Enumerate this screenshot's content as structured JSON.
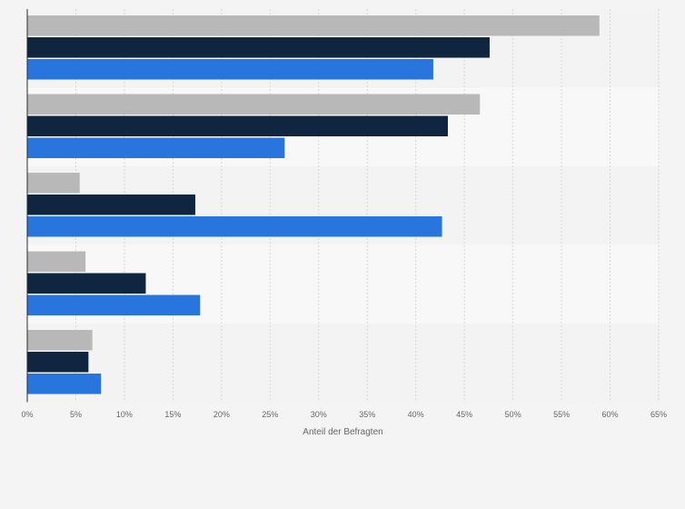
{
  "chart_data": {
    "type": "bar",
    "orientation": "horizontal",
    "categories": [
      "",
      "",
      "",
      "",
      ""
    ],
    "series": [
      {
        "values": [
          58.9,
          46.6,
          5.4,
          6.0,
          6.7
        ],
        "color": "#b8b8b8"
      },
      {
        "values": [
          47.6,
          43.3,
          17.3,
          12.2,
          6.3
        ],
        "color": "#10253f"
      },
      {
        "values": [
          41.8,
          26.5,
          42.7,
          17.8,
          7.6
        ],
        "color": "#2876dd"
      }
    ],
    "xlabel": "Anteil der Befragten",
    "ylabel": "",
    "xlim": [
      0,
      65
    ],
    "xticks": [
      "0%",
      "5%",
      "10%",
      "15%",
      "20%",
      "25%",
      "30%",
      "35%",
      "40%",
      "45%",
      "50%",
      "55%",
      "60%",
      "65%"
    ],
    "grid": true,
    "legend": "none"
  }
}
